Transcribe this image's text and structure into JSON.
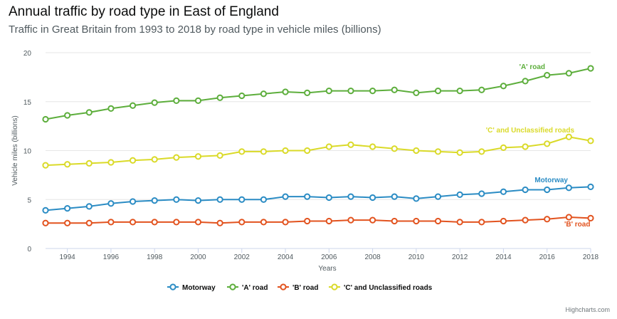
{
  "title": "Annual traffic by road type in East of England",
  "subtitle": "Traffic in Great Britain from 1993 to 2018 by road type in vehicle miles (billions)",
  "credits": "Highcharts.com",
  "chart_data": {
    "type": "line",
    "title": "Annual traffic by road type in East of England",
    "subtitle": "Traffic in Great Britain from 1993 to 2018 by road type in vehicle miles (billions)",
    "xlabel": "Years",
    "ylabel": "Vehicle miles (billions)",
    "ylim": [
      0,
      20
    ],
    "yticks": [
      0,
      5,
      10,
      15,
      20
    ],
    "xlim": [
      1993,
      2018
    ],
    "xticks": [
      1994,
      1996,
      1998,
      2000,
      2002,
      2004,
      2006,
      2008,
      2010,
      2012,
      2014,
      2016,
      2018
    ],
    "x": [
      1993,
      1994,
      1995,
      1996,
      1997,
      1998,
      1999,
      2000,
      2001,
      2002,
      2003,
      2004,
      2005,
      2006,
      2007,
      2008,
      2009,
      2010,
      2011,
      2012,
      2013,
      2014,
      2015,
      2016,
      2017,
      2018
    ],
    "grid": true,
    "legend_position": "bottom-center",
    "series": [
      {
        "name": "Motorway",
        "label": "Motorway",
        "color": "#2b8cc4",
        "values": [
          3.9,
          4.1,
          4.3,
          4.6,
          4.8,
          4.9,
          5.0,
          4.9,
          5.0,
          5.0,
          5.0,
          5.3,
          5.3,
          5.2,
          5.3,
          5.2,
          5.3,
          5.1,
          5.3,
          5.5,
          5.6,
          5.8,
          6.0,
          6.0,
          6.2,
          6.3
        ]
      },
      {
        "name": "'A' road",
        "label": "'A' road",
        "color": "#5dae3c",
        "values": [
          13.2,
          13.6,
          13.9,
          14.3,
          14.6,
          14.9,
          15.1,
          15.1,
          15.4,
          15.6,
          15.8,
          16.0,
          15.9,
          16.1,
          16.1,
          16.1,
          16.2,
          15.9,
          16.1,
          16.1,
          16.2,
          16.6,
          17.1,
          17.7,
          17.9,
          18.4
        ]
      },
      {
        "name": "'B' road",
        "label": "'B' road",
        "color": "#e2531f",
        "values": [
          2.6,
          2.6,
          2.6,
          2.7,
          2.7,
          2.7,
          2.7,
          2.7,
          2.6,
          2.7,
          2.7,
          2.7,
          2.8,
          2.8,
          2.9,
          2.9,
          2.8,
          2.8,
          2.8,
          2.7,
          2.7,
          2.8,
          2.9,
          3.0,
          3.2,
          3.1
        ]
      },
      {
        "name": "'C' and Unclassified roads",
        "label": "'C' and Unclassified roads",
        "color": "#dada29",
        "values": [
          8.5,
          8.6,
          8.7,
          8.8,
          9.0,
          9.1,
          9.3,
          9.4,
          9.5,
          9.9,
          9.9,
          10.0,
          10.0,
          10.4,
          10.6,
          10.4,
          10.2,
          10.0,
          9.9,
          9.8,
          9.9,
          10.3,
          10.4,
          10.7,
          11.4,
          11.0
        ]
      }
    ]
  }
}
